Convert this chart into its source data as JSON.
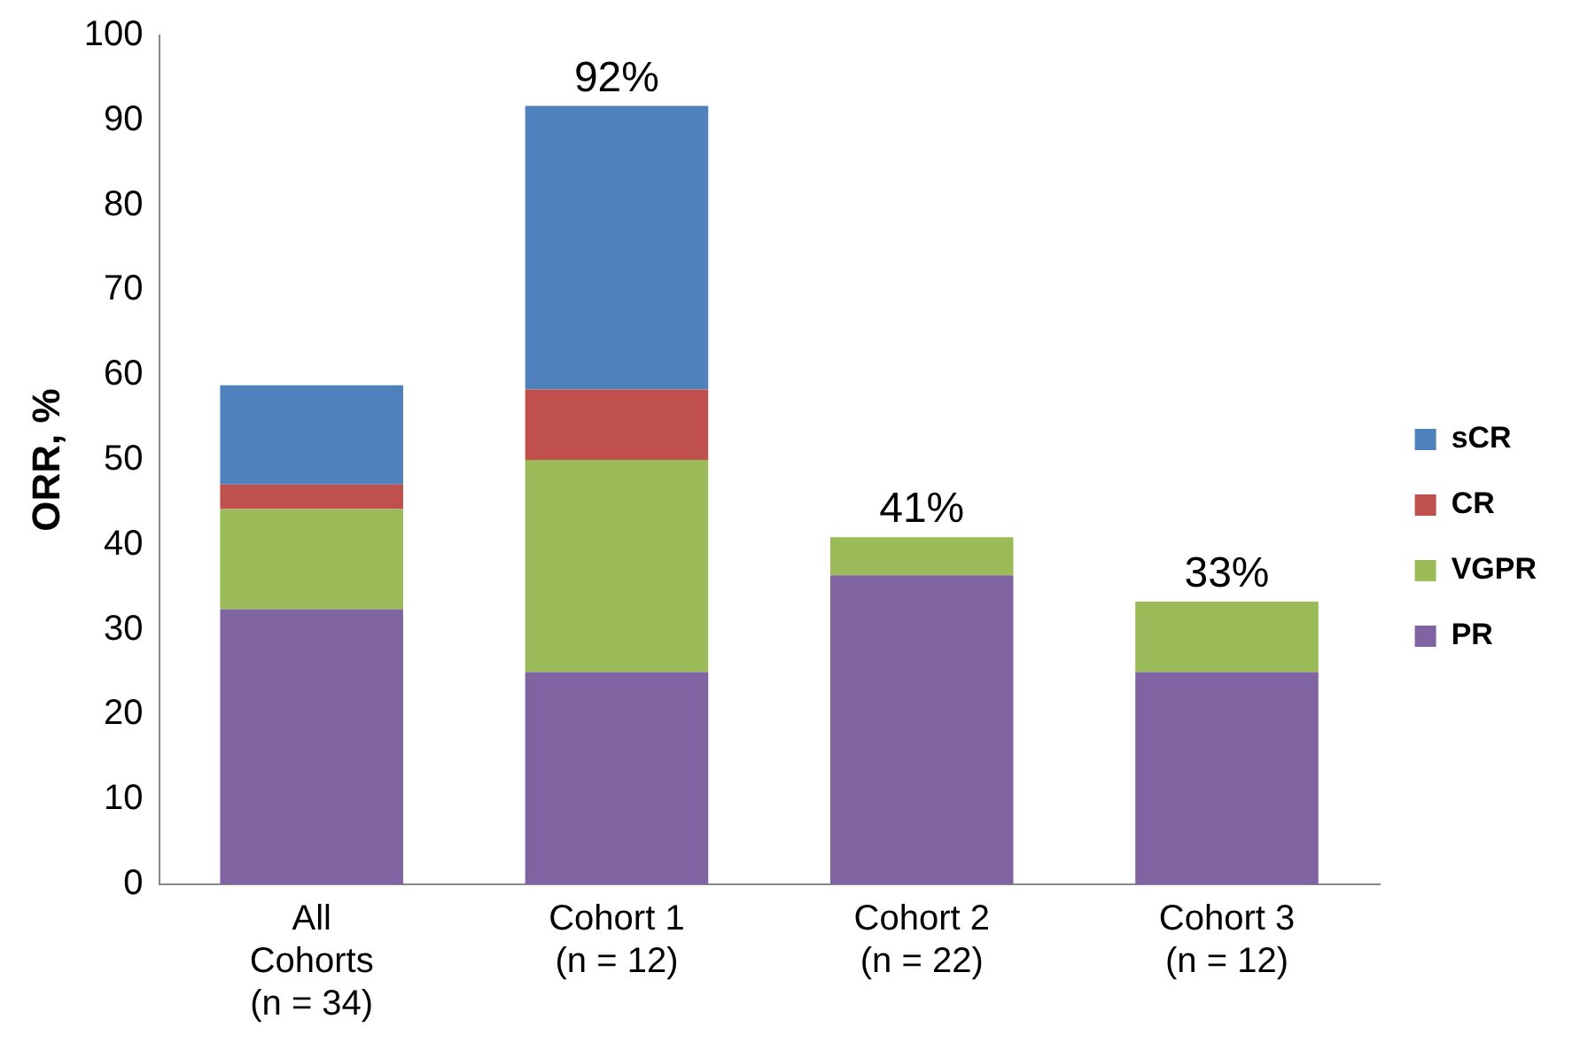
{
  "chart_data": {
    "type": "bar",
    "stacked": true,
    "ylabel": "ORR, %",
    "categories": [
      "All Cohorts (n = 34)",
      "Cohort 1 (n = 12)",
      "Cohort 2 (n = 22)",
      "Cohort 3 (n = 12)"
    ],
    "series": [
      {
        "name": "PR",
        "color": "#8064a2",
        "values": [
          32.4,
          25,
          36.4,
          25
        ]
      },
      {
        "name": "VGPR",
        "color": "#9bbb59",
        "values": [
          11.8,
          25,
          4.5,
          8.3
        ]
      },
      {
        "name": "CR",
        "color": "#c0504d",
        "values": [
          2.9,
          8.3,
          null,
          null
        ]
      },
      {
        "name": "sCR",
        "color": "#4f81bd",
        "values": [
          11.7,
          33.4,
          null,
          null
        ]
      }
    ],
    "totals": [
      null,
      "92%",
      "41%",
      "33%"
    ],
    "ylim": [
      0,
      100
    ],
    "yticks": [
      0,
      10,
      20,
      30,
      40,
      50,
      60,
      70,
      80,
      90,
      100
    ],
    "grid": false,
    "legend": "right"
  }
}
